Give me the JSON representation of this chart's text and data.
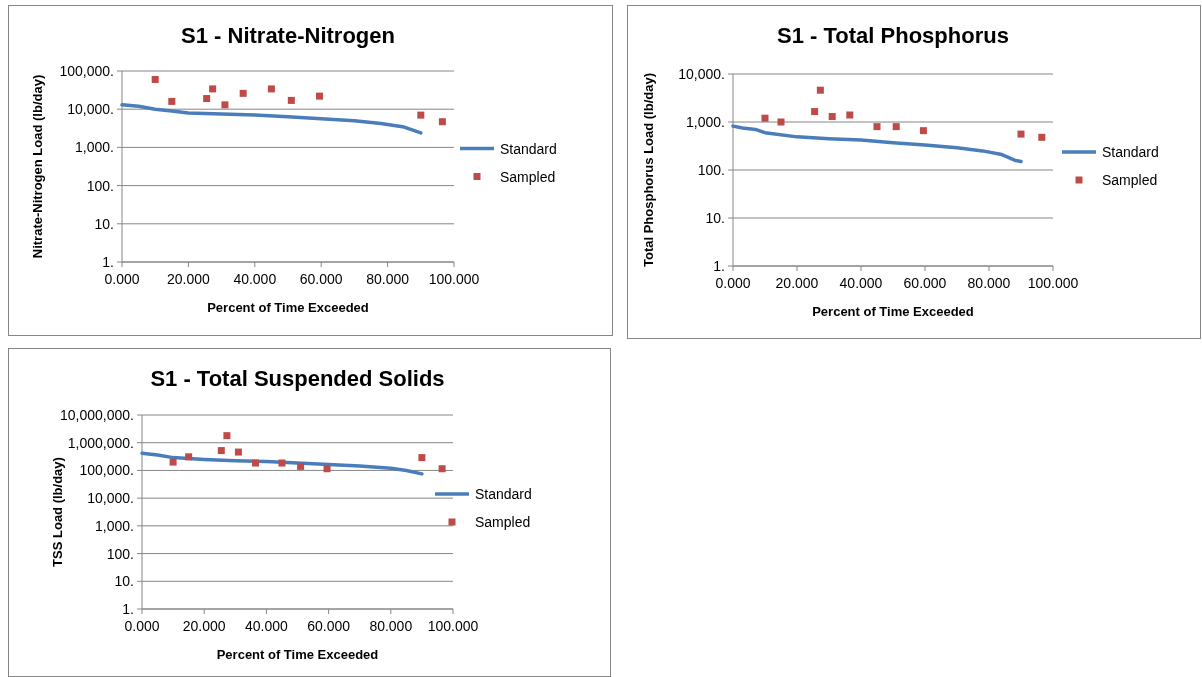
{
  "chart_data": [
    {
      "type": "scatter",
      "title": "S1 - Nitrate-Nitrogen",
      "xlabel": "Percent of Time Exceeded",
      "ylabel": "Nitrate-Nitrogen Load (lb/day)",
      "log": "y",
      "grid": "y",
      "legend": "right",
      "xlim": [
        0,
        100
      ],
      "xticks": [
        {
          "value": 0,
          "label": "0.000"
        },
        {
          "value": 20,
          "label": "20.000"
        },
        {
          "value": 40,
          "label": "40.000"
        },
        {
          "value": 60,
          "label": "60.000"
        },
        {
          "value": 80,
          "label": "80.000"
        },
        {
          "value": 100,
          "label": "100.000"
        }
      ],
      "ylim": [
        1,
        100000
      ],
      "yticks": [
        {
          "value": 1,
          "label": "1."
        },
        {
          "value": 10,
          "label": "10."
        },
        {
          "value": 100,
          "label": "100."
        },
        {
          "value": 1000,
          "label": "1,000."
        },
        {
          "value": 10000,
          "label": "10,000."
        },
        {
          "value": 100000,
          "label": "100,000."
        }
      ],
      "series": [
        {
          "name": "Standard",
          "type": "line",
          "marker": "none",
          "color": "#4a7ebb",
          "x": [
            0,
            5,
            10,
            15,
            20,
            30,
            40,
            50,
            60,
            70,
            78,
            85,
            90
          ],
          "values": [
            13000,
            12000,
            10000,
            9000,
            8000,
            7500,
            7000,
            6300,
            5600,
            5000,
            4200,
            3400,
            2400
          ]
        },
        {
          "name": "Sampled",
          "marker": "square",
          "color": "#be4b48",
          "x": [
            10,
            15,
            25.5,
            27.3,
            31,
            36.5,
            45,
            51,
            59.5,
            90,
            96.5
          ],
          "values": [
            60000,
            16000,
            19000,
            34000,
            13000,
            26000,
            34000,
            17000,
            22000,
            7000,
            4700
          ]
        }
      ]
    },
    {
      "type": "scatter",
      "title": "S1 - Total Phosphorus",
      "xlabel": "Percent of Time Exceeded",
      "ylabel": "Total Phosphorus Load (lb/day)",
      "log": "y",
      "grid": "y",
      "legend": "right",
      "xlim": [
        0,
        100
      ],
      "xticks": [
        {
          "value": 0,
          "label": "0.000"
        },
        {
          "value": 20,
          "label": "20.000"
        },
        {
          "value": 40,
          "label": "40.000"
        },
        {
          "value": 60,
          "label": "60.000"
        },
        {
          "value": 80,
          "label": "80.000"
        },
        {
          "value": 100,
          "label": "100.000"
        }
      ],
      "ylim": [
        1,
        10000
      ],
      "yticks": [
        {
          "value": 1,
          "label": "1."
        },
        {
          "value": 10,
          "label": "10."
        },
        {
          "value": 100,
          "label": "100."
        },
        {
          "value": 1000,
          "label": "1,000."
        },
        {
          "value": 10000,
          "label": "10,000."
        }
      ],
      "series": [
        {
          "name": "Standard",
          "type": "line",
          "marker": "none",
          "color": "#4a7ebb",
          "x": [
            0,
            3,
            7,
            10,
            20,
            30,
            40,
            50,
            60,
            70,
            78,
            84,
            88,
            90
          ],
          "values": [
            820,
            750,
            700,
            600,
            490,
            450,
            420,
            370,
            330,
            290,
            250,
            210,
            160,
            150
          ]
        },
        {
          "name": "Sampled",
          "marker": "square",
          "color": "#be4b48",
          "x": [
            10,
            15,
            25.5,
            27.3,
            31,
            36.5,
            45,
            51,
            59.5,
            90,
            96.5
          ],
          "values": [
            1200,
            1000,
            1650,
            4600,
            1300,
            1400,
            800,
            800,
            660,
            560,
            480
          ]
        }
      ]
    },
    {
      "type": "scatter",
      "title": "S1 - Total Suspended Solids",
      "xlabel": "Percent of Time Exceeded",
      "ylabel": "TSS Load (lb/day)",
      "log": "y",
      "grid": "y",
      "legend": "right",
      "xlim": [
        0,
        100
      ],
      "xticks": [
        {
          "value": 0,
          "label": "0.000"
        },
        {
          "value": 20,
          "label": "20.000"
        },
        {
          "value": 40,
          "label": "40.000"
        },
        {
          "value": 60,
          "label": "60.000"
        },
        {
          "value": 80,
          "label": "80.000"
        },
        {
          "value": 100,
          "label": "100.000"
        }
      ],
      "ylim": [
        1,
        10000000
      ],
      "yticks": [
        {
          "value": 1,
          "label": "1."
        },
        {
          "value": 10,
          "label": "10."
        },
        {
          "value": 100,
          "label": "100."
        },
        {
          "value": 1000,
          "label": "1,000."
        },
        {
          "value": 10000,
          "label": "10,000."
        },
        {
          "value": 100000,
          "label": "100,000."
        },
        {
          "value": 1000000,
          "label": "1,000,000."
        },
        {
          "value": 10000000,
          "label": "10,000,000."
        }
      ],
      "series": [
        {
          "name": "Standard",
          "type": "line",
          "marker": "none",
          "color": "#4a7ebb",
          "x": [
            0,
            5,
            10,
            20,
            30,
            40,
            50,
            60,
            70,
            80,
            85,
            90
          ],
          "values": [
            420000,
            360000,
            290000,
            250000,
            225000,
            210000,
            185000,
            165000,
            145000,
            120000,
            100000,
            75000
          ]
        },
        {
          "name": "Sampled",
          "marker": "square",
          "color": "#be4b48",
          "x": [
            10,
            15,
            25.5,
            27.3,
            31,
            36.5,
            45,
            51,
            59.5,
            90,
            96.5
          ],
          "values": [
            200000,
            310000,
            520000,
            1800000,
            460000,
            185000,
            185000,
            140000,
            115000,
            290000,
            115000
          ]
        }
      ]
    }
  ]
}
